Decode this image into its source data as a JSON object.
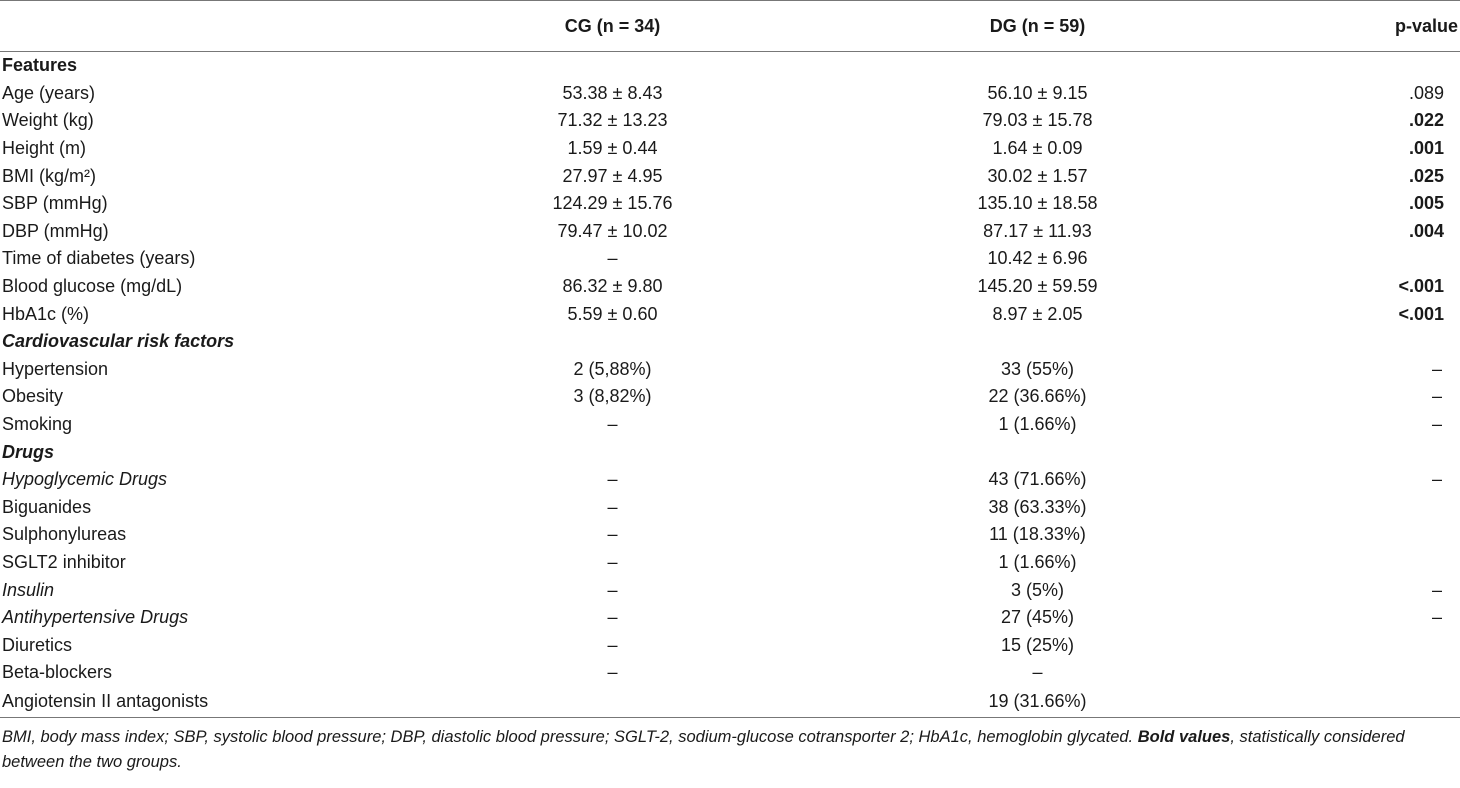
{
  "table": {
    "headers": [
      "",
      "CG (n = 34)",
      "DG (n = 59)",
      "p-value"
    ],
    "rows": [
      {
        "kind": "section",
        "label": "Features",
        "cg": "",
        "dg": "",
        "p": ""
      },
      {
        "kind": "row",
        "label": "Age (years)",
        "cg": "53.38 ± 8.43",
        "dg": "56.10 ± 9.15",
        "p": ".089"
      },
      {
        "kind": "row",
        "label": "Weight (kg)",
        "cg": "71.32 ± 13.23",
        "dg": "79.03 ± 15.78",
        "p": ".022",
        "p_bold": true
      },
      {
        "kind": "row",
        "label": "Height (m)",
        "cg": "1.59 ± 0.44",
        "dg": "1.64 ± 0.09",
        "p": ".001",
        "p_bold": true
      },
      {
        "kind": "row",
        "label": "BMI (kg/m²)",
        "cg": "27.97 ± 4.95",
        "dg": "30.02 ± 1.57",
        "p": ".025",
        "p_bold": true
      },
      {
        "kind": "row",
        "label": "SBP (mmHg)",
        "cg": "124.29 ± 15.76",
        "dg": "135.10 ± 18.58",
        "p": ".005",
        "p_bold": true
      },
      {
        "kind": "row",
        "label": "DBP (mmHg)",
        "cg": "79.47 ± 10.02",
        "dg": "87.17 ± 11.93",
        "p": ".004",
        "p_bold": true
      },
      {
        "kind": "row",
        "label": "Time of diabetes (years)",
        "cg": "–",
        "dg": "10.42 ± 6.96",
        "p": ""
      },
      {
        "kind": "row",
        "label": "Blood glucose (mg/dL)",
        "cg": "86.32 ± 9.80",
        "dg": "145.20 ± 59.59",
        "p": "<.001",
        "p_bold": true
      },
      {
        "kind": "row",
        "label": "HbA1c (%)",
        "cg": "5.59 ± 0.60",
        "dg": "8.97 ± 2.05",
        "p": "<.001",
        "p_bold": true
      },
      {
        "kind": "section-italic",
        "label": "Cardiovascular risk factors",
        "cg": "",
        "dg": "",
        "p": ""
      },
      {
        "kind": "row",
        "label": "Hypertension",
        "cg": "2 (5,88%)",
        "dg": "33 (55%)",
        "p": "–"
      },
      {
        "kind": "row",
        "label": "Obesity",
        "cg": "3 (8,82%)",
        "dg": "22 (36.66%)",
        "p": "–"
      },
      {
        "kind": "row",
        "label": "Smoking",
        "cg": "–",
        "dg": "1 (1.66%)",
        "p": "–"
      },
      {
        "kind": "section-italic",
        "label": "Drugs",
        "cg": "",
        "dg": "",
        "p": ""
      },
      {
        "kind": "italic",
        "label": "Hypoglycemic Drugs",
        "cg": "–",
        "dg": "43 (71.66%)",
        "p": "–"
      },
      {
        "kind": "row",
        "label": "Biguanides",
        "cg": "–",
        "dg": "38 (63.33%)",
        "p": ""
      },
      {
        "kind": "row",
        "label": "Sulphonylureas",
        "cg": "–",
        "dg": "11 (18.33%)",
        "p": ""
      },
      {
        "kind": "row",
        "label": "SGLT2 inhibitor",
        "cg": "–",
        "dg": "1 (1.66%)",
        "p": ""
      },
      {
        "kind": "italic",
        "label": "Insulin",
        "cg": "–",
        "dg": "3 (5%)",
        "p": "–"
      },
      {
        "kind": "italic",
        "label": "Antihypertensive Drugs",
        "cg": "–",
        "dg": "27 (45%)",
        "p": "–"
      },
      {
        "kind": "row",
        "label": "Diuretics",
        "cg": "–",
        "dg": "15 (25%)",
        "p": ""
      },
      {
        "kind": "row",
        "label": "Beta-blockers",
        "cg": "–",
        "dg": "–",
        "p": ""
      },
      {
        "kind": "row",
        "label": "Angiotensin II antagonists",
        "cg": "",
        "dg": "19 (31.66%)",
        "p": ""
      }
    ]
  },
  "footnote": {
    "text_before": "BMI, body mass index; SBP, systolic blood pressure; DBP, diastolic blood pressure; SGLT-2, sodium-glucose cotransporter 2; HbA1c, hemoglobin glycated. ",
    "bold_part": "Bold values",
    "text_after": ", statistically considered between the two groups."
  }
}
